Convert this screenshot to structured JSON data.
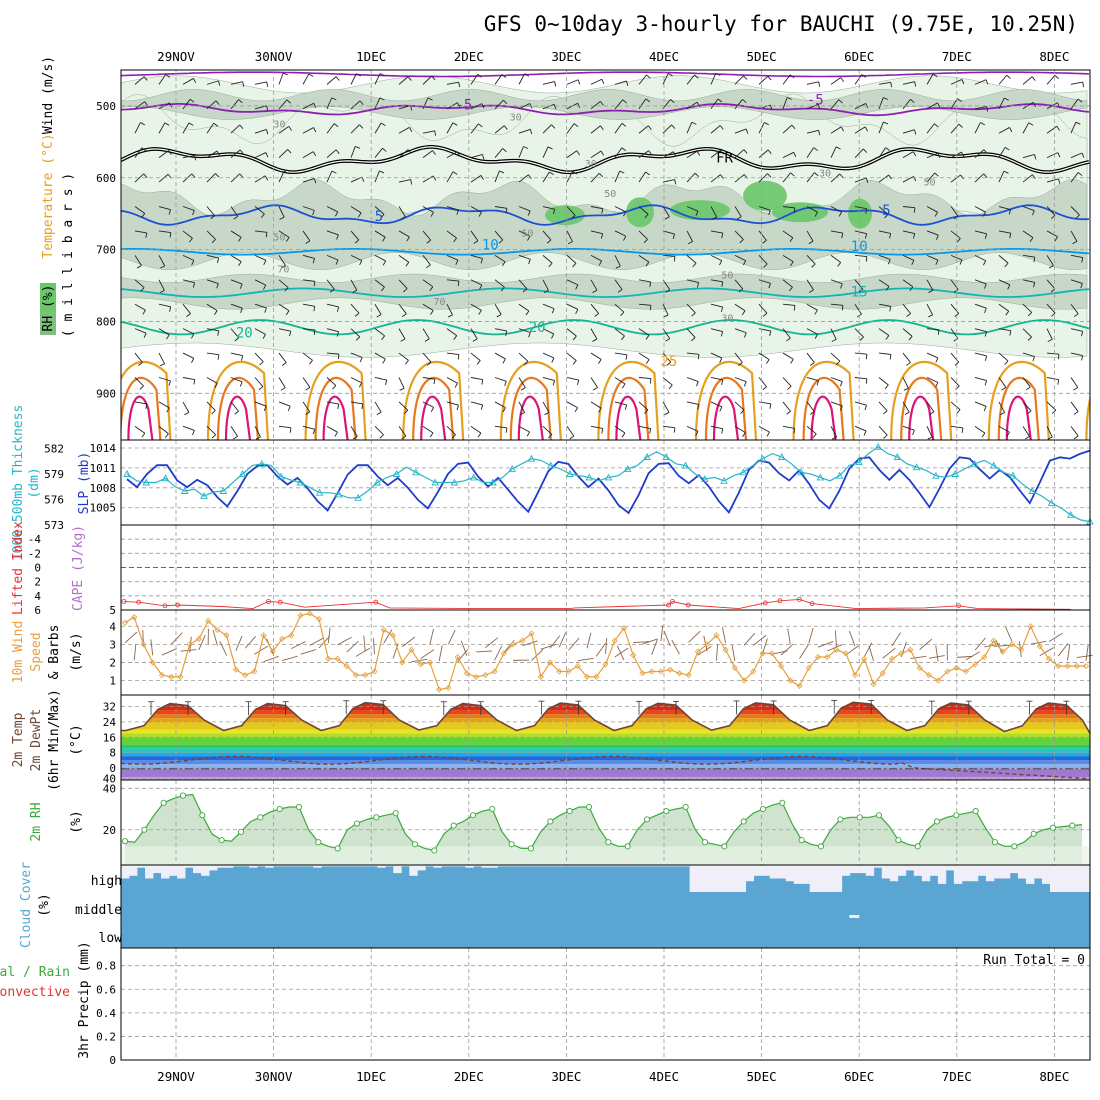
{
  "title": "GFS 0~10day 3-hourly for BAUCHI (9.75E, 10.25N)",
  "colors": {
    "rh_light": "#e8f4e8",
    "rh_mid": "#c8d8c8",
    "rh_green": "#69c869",
    "t_purple": "#8c1eb4",
    "t_black": "#000000",
    "t_blue": "#1e50d2",
    "t_sky": "#0a96e6",
    "t_teal": "#14b4b4",
    "t_green": "#14b48c",
    "t_orange": "#e6a01e",
    "t_dorange": "#e6781e",
    "t_magenta": "#dc1478",
    "slp": "#1e3cc8",
    "thick": "#28b4c8",
    "lifted": "#e63232",
    "wind": "#e6a03c",
    "barb": "#8c6446",
    "cloud": "#5aa5d2",
    "cloud_clear": "#f0eef8",
    "rh2m": "#3caa3c",
    "temp_line": "#6e4632"
  },
  "chart_data": [
    {
      "panel": "upper-air",
      "type": "heatmap",
      "x": [
        "29NOV",
        "30NOV",
        "1DEC",
        "2DEC",
        "3DEC",
        "4DEC",
        "5DEC",
        "6DEC",
        "7DEC",
        "8DEC"
      ],
      "ylabel_parts": [
        "RH (%)",
        "Temperature (°C)",
        "Wind (m/s)"
      ],
      "ylabel2": "(millibars)",
      "y_ticks": [
        500,
        600,
        700,
        800,
        900
      ],
      "ylim": [
        450,
        965
      ],
      "isotherm_labels": [
        {
          "text": "-5",
          "t": 2.95,
          "p": 505,
          "color": "t_purple"
        },
        {
          "text": "-5",
          "t": 6.55,
          "p": 498,
          "color": "t_purple"
        },
        {
          "text": "FR",
          "t": 5.62,
          "p": 579,
          "color": "t_black"
        },
        {
          "text": "5",
          "t": 2.08,
          "p": 660,
          "color": "t_blue"
        },
        {
          "text": "5",
          "t": 7.28,
          "p": 652,
          "color": "t_blue"
        },
        {
          "text": "10",
          "t": 3.22,
          "p": 700,
          "color": "t_sky"
        },
        {
          "text": "10",
          "t": 7.0,
          "p": 702,
          "color": "t_sky"
        },
        {
          "text": "15",
          "t": 7.0,
          "p": 765,
          "color": "t_teal"
        },
        {
          "text": "20",
          "t": 0.7,
          "p": 822,
          "color": "t_green"
        },
        {
          "text": "20",
          "t": 3.7,
          "p": 815,
          "color": "t_green"
        },
        {
          "text": "25",
          "t": 5.05,
          "p": 862,
          "color": "t_orange"
        }
      ],
      "rh_labels": [
        {
          "text": "30",
          "t": 1.06,
          "p": 530
        },
        {
          "text": "30",
          "t": 3.48,
          "p": 520
        },
        {
          "text": "30",
          "t": 4.25,
          "p": 585
        },
        {
          "text": "30",
          "t": 6.65,
          "p": 598
        },
        {
          "text": "50",
          "t": 4.45,
          "p": 627
        },
        {
          "text": "50",
          "t": 1.06,
          "p": 687
        },
        {
          "text": "50",
          "t": 3.6,
          "p": 682
        },
        {
          "text": "50",
          "t": 5.65,
          "p": 740
        },
        {
          "text": "70",
          "t": 1.1,
          "p": 732
        },
        {
          "text": "70",
          "t": 2.7,
          "p": 777
        },
        {
          "text": "30",
          "t": 5.65,
          "p": 800
        },
        {
          "text": "50",
          "t": 7.72,
          "p": 611
        }
      ]
    },
    {
      "panel": "slp-thickness",
      "type": "line",
      "ylabel_left": "1000-500mb Thickness (dm)",
      "ylabel_right": "SLP (mb)",
      "thickness_ticks": [
        573,
        576,
        579,
        582
      ],
      "slp_ticks": [
        1005,
        1008,
        1011,
        1014
      ],
      "thick_lim": [
        573,
        583
      ],
      "slp_lim": [
        1002.4,
        1015.2
      ],
      "x_start_hours": 78,
      "step_hours": 3,
      "series": [
        {
          "key": "slp",
          "values": [
            1009.3,
            1008.1,
            1010.1,
            1011.4,
            1011.4,
            1009.1,
            1008.1,
            1009.2,
            1008.4,
            1006.6,
            1005.2,
            1007.5,
            1010.1,
            1011.3,
            1011.4,
            1009.7,
            1008.5,
            1009.5,
            1007.9,
            1006.0,
            1004.6,
            1007.2,
            1010.0,
            1011.4,
            1011.4,
            1009.7,
            1008.4,
            1009.5,
            1008.0,
            1006.2,
            1004.9,
            1007.4,
            1010.1,
            1011.6,
            1011.8,
            1009.7,
            1008.2,
            1009.5,
            1007.7,
            1005.9,
            1004.4,
            1007.4,
            1010.5,
            1011.9,
            1011.6,
            1009.7,
            1008.1,
            1009.4,
            1007.6,
            1005.4,
            1004.2,
            1006.9,
            1010.2,
            1011.6,
            1011.7,
            1009.8,
            1008.7,
            1009.9,
            1008.2,
            1006.0,
            1004.3,
            1007.3,
            1010.7,
            1012.1,
            1011.8,
            1010.2,
            1009.1,
            1010.6,
            1008.6,
            1006.2,
            1004.9,
            1007.5,
            1010.9,
            1012.4,
            1012.6,
            1010.7,
            1009.2,
            1010.7,
            1009.2,
            1007.2,
            1005.1,
            1007.9,
            1010.9,
            1012.6,
            1012.4,
            1010.8,
            1009.4,
            1010.7,
            1009.6,
            1007.6,
            1005.7,
            1008.8,
            1012.1,
            1012.6,
            1012.4,
            1013.1,
            1013.6
          ]
        },
        {
          "key": "thickness",
          "values": [
            579.0,
            578.2,
            578.0,
            578.0,
            578.5,
            577.5,
            577.0,
            577.2,
            576.4,
            576.9,
            577.0,
            578.0,
            579.0,
            580.0,
            580.2,
            580.0,
            578.7,
            578.3,
            578.0,
            577.4,
            576.8,
            576.8,
            576.6,
            576.2,
            576.2,
            577.0,
            578.0,
            578.6,
            579.0,
            579.8,
            579.2,
            578.6,
            578.0,
            578.0,
            578.0,
            578.2,
            578.6,
            578.0,
            578.0,
            578.6,
            579.6,
            580.2,
            580.8,
            580.6,
            580.0,
            579.6,
            579.0,
            578.8,
            578.6,
            578.2,
            578.6,
            578.8,
            579.6,
            580.0,
            581.0,
            581.6,
            581.0,
            580.2,
            580.0,
            579.0,
            578.4,
            578.6,
            578.2,
            578.8,
            579.2,
            580.0,
            580.8,
            581.4,
            581.0,
            580.2,
            579.2,
            579.0,
            578.6,
            578.2,
            578.8,
            580.0,
            580.4,
            581.4,
            582.2,
            581.4,
            581.0,
            580.2,
            579.8,
            579.4,
            578.8,
            578.6,
            579.0,
            579.6,
            580.2,
            580.6,
            580.0,
            579.2,
            578.8,
            577.8,
            577.0,
            576.4,
            575.6,
            575.0,
            574.2,
            573.6,
            573.4
          ]
        }
      ]
    },
    {
      "panel": "stability",
      "type": "line",
      "ylabel_parts": [
        "Lifted Index",
        "CAPE (J/kg)"
      ],
      "li_ticks": [
        -4,
        -2,
        0,
        2,
        4,
        6
      ],
      "li_tick_labels": [
        "-4",
        "-2",
        "0",
        "2",
        "4",
        "6"
      ],
      "li_lim": [
        -6,
        6
      ],
      "cape_ticks": [
        5
      ],
      "series": [
        {
          "key": "lifted",
          "points": [
            [
              0.0,
              4.8
            ],
            [
              0.15,
              4.9
            ],
            [
              0.42,
              5.4
            ],
            [
              0.55,
              5.3
            ],
            [
              1.0,
              5.5
            ],
            [
              1.32,
              5.8
            ],
            [
              1.48,
              4.8
            ],
            [
              1.6,
              4.9
            ],
            [
              1.85,
              5.6
            ],
            [
              2.58,
              4.9
            ],
            [
              2.72,
              5.7
            ],
            [
              3.6,
              5.8
            ],
            [
              4.57,
              5.8
            ],
            [
              4.62,
              5.7
            ],
            [
              5.58,
              5.3
            ],
            [
              5.62,
              4.8
            ],
            [
              5.78,
              5.3
            ],
            [
              6.3,
              5.8
            ],
            [
              6.57,
              5.0
            ],
            [
              6.72,
              4.7
            ],
            [
              6.92,
              4.5
            ],
            [
              7.05,
              5.1
            ],
            [
              7.5,
              5.8
            ],
            [
              8.2,
              5.7
            ],
            [
              8.55,
              5.4
            ],
            [
              8.75,
              5.8
            ],
            [
              9.7,
              5.9
            ]
          ]
        }
      ]
    },
    {
      "panel": "wind10m",
      "type": "line",
      "ylabel_parts": [
        "10m Wind",
        "Speed",
        "& Barbs"
      ],
      "ylabel2": "(m/s)",
      "y_ticks": [
        1,
        2,
        3,
        4
      ],
      "ylim": [
        0.2,
        4.9
      ],
      "x_start_hours": 78,
      "step_hours": 3,
      "series": [
        {
          "key": "wind",
          "values": [
            4.2,
            4.5,
            3.0,
            2.0,
            1.3,
            1.2,
            1.2,
            3.0,
            3.3,
            4.3,
            3.8,
            3.5,
            1.6,
            1.3,
            1.5,
            3.5,
            2.6,
            3.3,
            3.5,
            4.6,
            4.7,
            4.4,
            2.2,
            2.2,
            1.8,
            1.3,
            1.3,
            1.5,
            3.8,
            3.5,
            2.0,
            2.7,
            1.9,
            2.0,
            0.5,
            0.6,
            2.3,
            1.4,
            1.2,
            1.3,
            1.5,
            2.5,
            3.0,
            3.2,
            3.6,
            1.2,
            2.0,
            1.5,
            1.5,
            1.8,
            1.2,
            1.2,
            1.9,
            3.2,
            3.9,
            2.4,
            1.4,
            1.5,
            1.5,
            1.6,
            1.4,
            1.3,
            2.6,
            3.0,
            3.5,
            2.7,
            1.7,
            1.0,
            1.5,
            2.5,
            2.5,
            1.8,
            1.0,
            0.7,
            1.7,
            2.3,
            2.3,
            2.7,
            2.5,
            1.3,
            2.2,
            0.8,
            1.4,
            2.2,
            2.5,
            2.7,
            1.7,
            1.3,
            1.0,
            1.5,
            1.7,
            1.5,
            1.9,
            2.3,
            3.2,
            2.6,
            3.0,
            2.7,
            4.0,
            2.9,
            2.2,
            1.8,
            1.8,
            1.8,
            1.8
          ]
        }
      ]
    },
    {
      "panel": "temperature2m",
      "type": "area",
      "ylabel_parts": [
        "2m Temp",
        "2m DewPt",
        "(6hr Min/Max)"
      ],
      "ylabel2": "(°C)",
      "y_ticks": [
        -40,
        0,
        8,
        16,
        24,
        32
      ],
      "y_tick_labels": [
        "40",
        "0",
        "8",
        "16",
        "24",
        "32"
      ],
      "ylim": [
        -45,
        38
      ],
      "daily_max": [
        33.5,
        33.5,
        34.0,
        33.5,
        33.8,
        33.7,
        33.9,
        34.2,
        33.8,
        33.8
      ],
      "daily_min": [
        19.5,
        19.5,
        19.5,
        19.8,
        19.5,
        19.5,
        19.7,
        19.5,
        19.5,
        19.0
      ],
      "dew_start": 4,
      "dew_end": -40
    },
    {
      "panel": "rh2m",
      "type": "area",
      "ylabel": "2m RH",
      "ylabel2": "(%)",
      "y_ticks": [
        20,
        40
      ],
      "ylim": [
        3,
        44
      ],
      "x_start_hours": 78,
      "step_hours": 3,
      "series": [
        {
          "key": "rh2m",
          "values": [
            14.5,
            14.0,
            20.0,
            27.0,
            33.0,
            35.0,
            36.5,
            37.0,
            27.0,
            18.0,
            15.0,
            14.5,
            19.0,
            24.0,
            26.0,
            28.5,
            30.0,
            31.0,
            31.0,
            20.0,
            14.0,
            12.0,
            11.0,
            20.0,
            23.0,
            25.0,
            26.0,
            27.0,
            28.0,
            18.0,
            13.0,
            11.0,
            10.0,
            18.0,
            22.0,
            24.0,
            27.0,
            29.0,
            30.0,
            19.0,
            13.0,
            11.0,
            11.0,
            19.0,
            24.0,
            27.0,
            29.0,
            31.0,
            31.0,
            21.0,
            14.0,
            12.0,
            12.0,
            20.0,
            25.0,
            27.0,
            29.0,
            30.0,
            31.0,
            20.0,
            14.0,
            13.0,
            12.0,
            19.0,
            24.0,
            28.0,
            30.0,
            32.0,
            33.0,
            23.0,
            15.0,
            13.0,
            12.0,
            20.0,
            25.0,
            26.0,
            26.0,
            26.0,
            27.0,
            22.0,
            15.0,
            13.0,
            12.0,
            20.0,
            24.0,
            26.0,
            27.0,
            28.0,
            29.0,
            21.0,
            14.0,
            12.0,
            12.0,
            14.0,
            18.0,
            20.0,
            21.0,
            21.5,
            22.0,
            22.5
          ]
        }
      ]
    },
    {
      "panel": "cloud",
      "type": "bar",
      "ylabel": "Cloud Cover",
      "ylabel2": "(%)",
      "levels": [
        "high",
        "middle",
        "low"
      ],
      "high_cover": [
        0.5,
        0.6,
        0.9,
        0.5,
        0.7,
        0.5,
        0.6,
        0.5,
        0.9,
        0.7,
        0.6,
        0.8,
        0.9,
        0.9,
        0.95,
        0.95,
        0.9,
        0.95,
        0.9,
        0.95,
        0.95,
        0.95,
        0.95,
        0.95,
        0.9,
        0.95,
        0.95,
        0.95,
        0.95,
        0.95,
        0.95,
        0.95,
        0.9,
        0.95,
        0.7,
        0.95,
        0.6,
        0.8,
        0.95,
        0.9,
        0.95,
        0.95,
        0.95,
        0.9,
        0.95,
        0.9,
        0.9,
        0.95,
        0.95,
        0.95,
        0.95,
        0.95,
        0.95,
        0.95,
        0.95,
        0.95,
        0.95,
        0.95,
        0.95,
        0.95,
        0.95,
        0.95,
        0.95,
        0.95,
        0.95,
        0.95,
        0.95,
        0.95,
        0.95,
        0.95,
        0.95,
        0.0,
        0.0,
        0.0,
        0.0,
        0.0,
        0.0,
        0.0,
        0.4,
        0.6,
        0.6,
        0.5,
        0.5,
        0.4,
        0.3,
        0.3,
        0.0,
        0.0,
        0.0,
        0.0,
        0.6,
        0.7,
        0.7,
        0.6,
        0.9,
        0.5,
        0.4,
        0.6,
        0.8,
        0.6,
        0.4,
        0.6,
        0.3,
        0.8,
        0.3,
        0.4,
        0.4,
        0.6,
        0.4,
        0.5,
        0.5,
        0.7,
        0.5,
        0.3,
        0.5,
        0.3,
        0.0,
        0.0,
        0.0,
        0.0,
        0.0
      ],
      "middle_gap": 6.95
    },
    {
      "panel": "precip",
      "type": "bar",
      "ylabel_parts": [
        "Total / Rain",
        "Convective"
      ],
      "ylabel2": "3hr Precip (mm)",
      "y_ticks": [
        0,
        0.2,
        0.4,
        0.6,
        0.8
      ],
      "ylim": [
        0,
        0.95
      ],
      "run_total": "Run Total = 0"
    }
  ]
}
